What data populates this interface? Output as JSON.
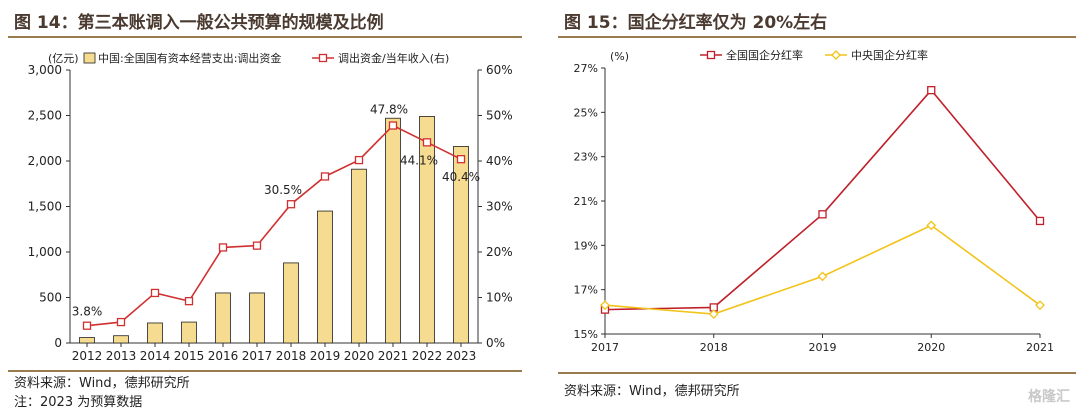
{
  "left": {
    "title": "图 14：第三本账调入一般公共预算的规模及比例",
    "source": "资料来源：Wind，德邦研究所",
    "note": "注：2023 为预算数据",
    "chart_data": {
      "type": "bar",
      "categories": [
        "2012",
        "2013",
        "2014",
        "2015",
        "2016",
        "2017",
        "2018",
        "2019",
        "2020",
        "2021",
        "2022",
        "2023"
      ],
      "left_unit": "(亿元)",
      "right_unit": "(右)",
      "ylim_left": [
        0,
        3000
      ],
      "ylim_right": [
        0,
        60
      ],
      "yticks_left": [
        "0",
        "500",
        "1,000",
        "1,500",
        "2,000",
        "2,500",
        "3,000"
      ],
      "yticks_right": [
        "0%",
        "10%",
        "20%",
        "30%",
        "40%",
        "50%",
        "60%"
      ],
      "series": [
        {
          "name": "中国:全国国有资本经营支出:调出资金",
          "kind": "bar",
          "axis": "left",
          "color": "#f6dc90",
          "values": [
            60,
            80,
            220,
            230,
            550,
            550,
            880,
            1450,
            1910,
            2470,
            2490,
            2160
          ]
        },
        {
          "name": "调出资金/当年收入(右)",
          "kind": "line",
          "axis": "right",
          "color": "#d03030",
          "values": [
            3.8,
            4.6,
            11.0,
            9.2,
            21.0,
            21.4,
            30.5,
            36.6,
            40.2,
            47.8,
            44.1,
            40.4
          ]
        }
      ],
      "data_labels": [
        {
          "index": 0,
          "text": "3.8%"
        },
        {
          "index": 6,
          "text": "30.5%"
        },
        {
          "index": 9,
          "text": "47.8%"
        },
        {
          "index": 10,
          "text": "44.1%"
        },
        {
          "index": 11,
          "text": "40.4%"
        }
      ]
    }
  },
  "right": {
    "title": "图 15：国企分红率仅为 20%左右",
    "source": "资料来源：Wind，德邦研究所",
    "chart_data": {
      "type": "line",
      "x": [
        "2017",
        "2018",
        "2019",
        "2020",
        "2021"
      ],
      "y_unit": "(%)",
      "ylim": [
        15,
        27
      ],
      "yticks": [
        "15%",
        "17%",
        "19%",
        "21%",
        "23%",
        "25%",
        "27%"
      ],
      "series": [
        {
          "name": "全国国企分红率",
          "color": "#c0202a",
          "marker": "square",
          "values": [
            16.1,
            16.2,
            20.4,
            26.0,
            20.1
          ]
        },
        {
          "name": "中央国企分红率",
          "color": "#f2c318",
          "marker": "diamond",
          "values": [
            16.3,
            15.9,
            17.6,
            19.9,
            16.3
          ]
        }
      ]
    }
  },
  "watermark": "格隆汇"
}
